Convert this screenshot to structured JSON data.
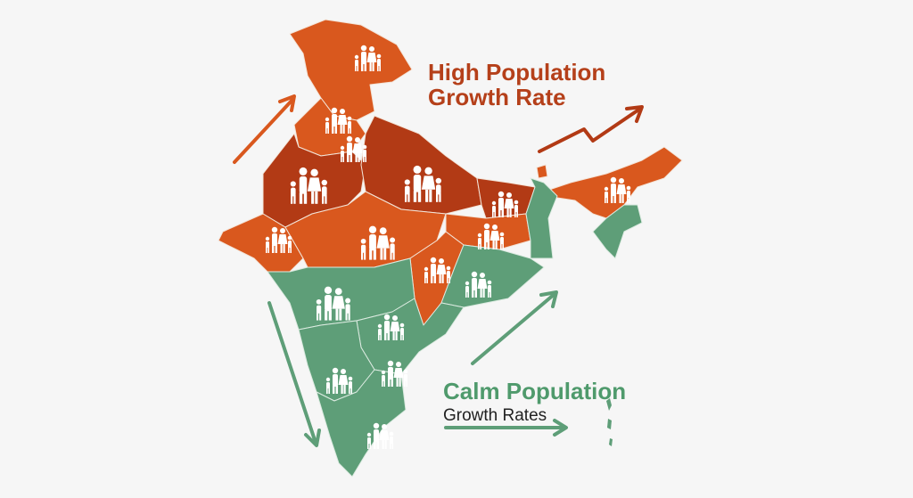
{
  "labels": {
    "high": {
      "line1": "High Population",
      "line2": "Growth Rate"
    },
    "calm": {
      "title": "Calm Population",
      "subtitle": "Growth Rates"
    }
  }
}
